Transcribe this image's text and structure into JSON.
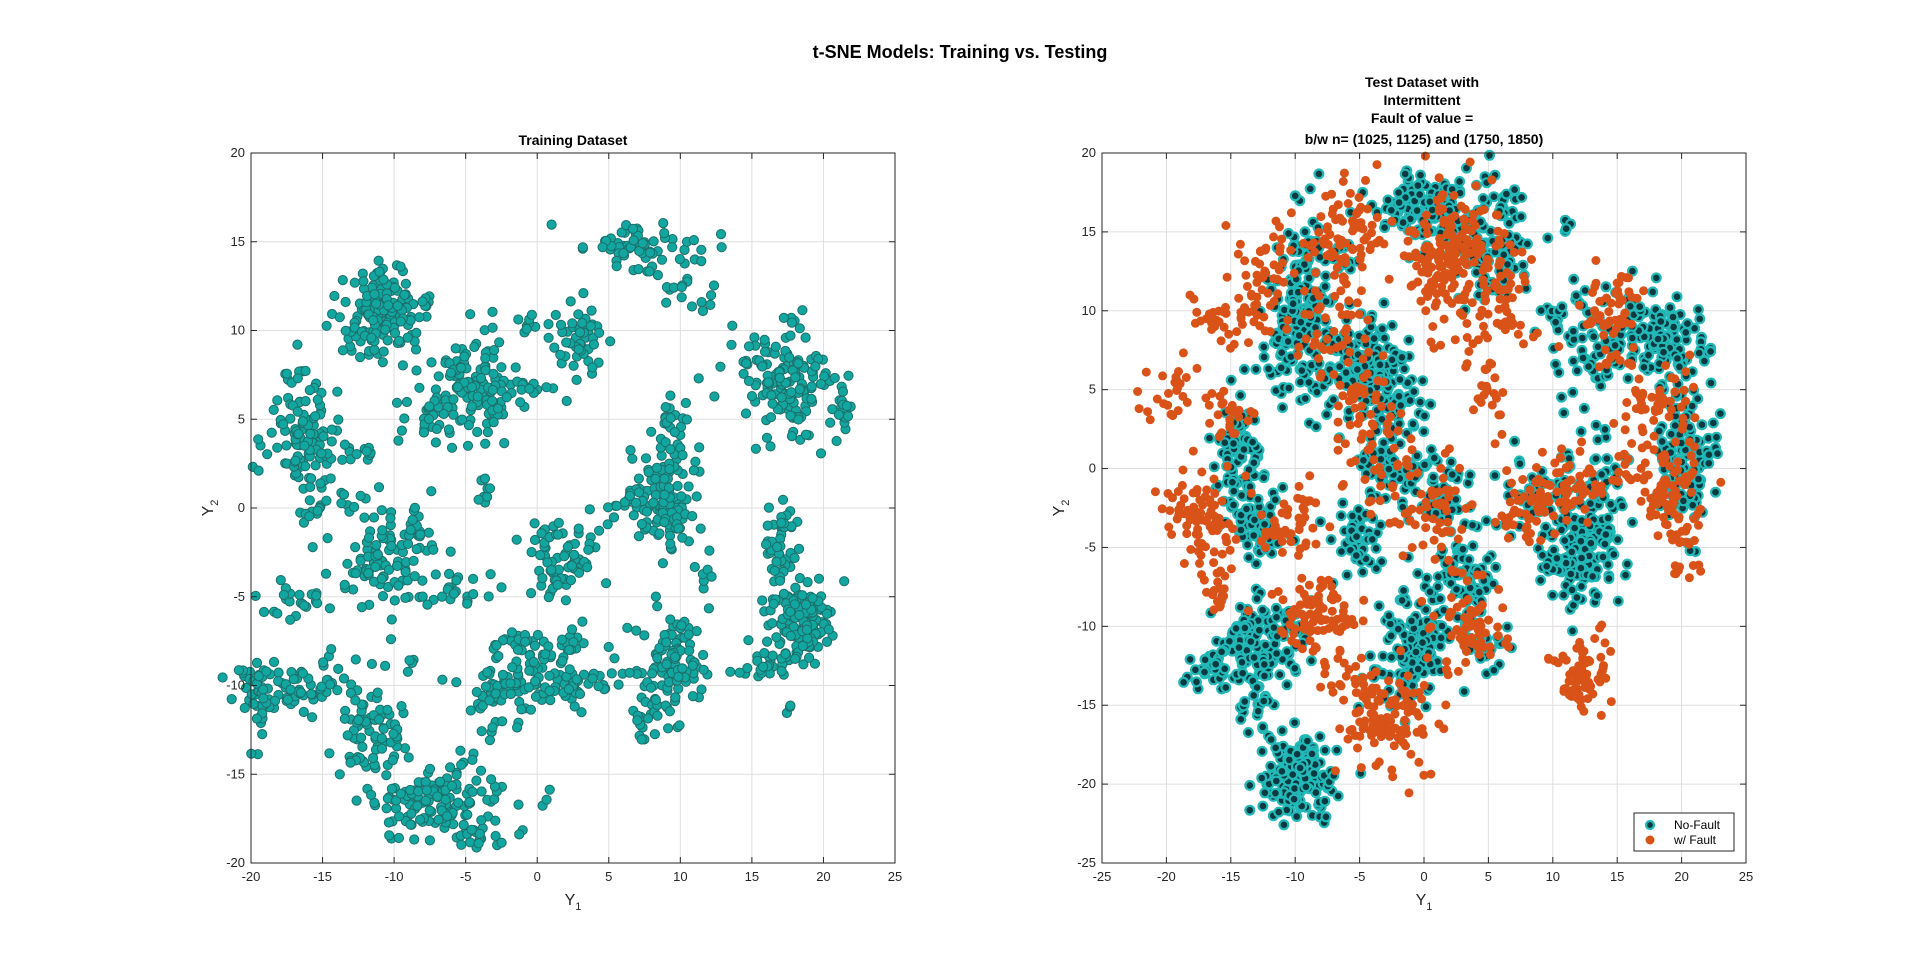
{
  "figure": {
    "title": "t-SNE Models: Training vs. Testing"
  },
  "chart_data": [
    {
      "type": "scatter",
      "title": "Training Dataset",
      "xlabel": "Y",
      "xlabel_sub": "1",
      "ylabel": "Y",
      "ylabel_sub": "2",
      "xlim": [
        -20,
        25
      ],
      "ylim": [
        -20,
        20
      ],
      "xticks": [
        -20,
        -15,
        -10,
        -5,
        0,
        5,
        10,
        15,
        20,
        25
      ],
      "yticks": [
        -20,
        -15,
        -10,
        -5,
        0,
        5,
        10,
        15,
        20
      ],
      "grid": true,
      "legend": null,
      "colors": {
        "marker_fill": "#11a7a0",
        "marker_edge": "#1e6e6a"
      },
      "series": [
        {
          "clusters": [
            {
              "x": -11,
              "y": 10.8,
              "sx": 1.6,
              "sy": 1.3,
              "n": 170
            },
            {
              "x": -16.5,
              "y": 4.3,
              "sx": 1.3,
              "sy": 1.8,
              "n": 110
            },
            {
              "x": -4.5,
              "y": 6.8,
              "sx": 1.6,
              "sy": 1.4,
              "n": 130
            },
            {
              "x": 3,
              "y": 9.3,
              "sx": 1.1,
              "sy": 1.1,
              "n": 50
            },
            {
              "x": 7.8,
              "y": 14.6,
              "sx": 2.2,
              "sy": 0.8,
              "n": 70
            },
            {
              "x": 17.2,
              "y": 7,
              "sx": 1.6,
              "sy": 1.6,
              "n": 150
            },
            {
              "x": 21.2,
              "y": 5.5,
              "sx": 0.3,
              "sy": 0.8,
              "n": 20
            },
            {
              "x": 9.2,
              "y": 0.3,
              "sx": 1.2,
              "sy": 1.6,
              "n": 120
            },
            {
              "x": 9.5,
              "y": 4.5,
              "sx": 0.8,
              "sy": 1.4,
              "n": 30
            },
            {
              "x": 18.2,
              "y": -6.3,
              "sx": 1.2,
              "sy": 1.2,
              "n": 140
            },
            {
              "x": 16.8,
              "y": -2.2,
              "sx": 0.6,
              "sy": 1.5,
              "n": 45
            },
            {
              "x": 16,
              "y": -8.6,
              "sx": 1.2,
              "sy": 0.5,
              "n": 25
            },
            {
              "x": 9.5,
              "y": -8.7,
              "sx": 1.1,
              "sy": 1.4,
              "n": 90
            },
            {
              "x": 8,
              "y": -11.5,
              "sx": 1.0,
              "sy": 0.8,
              "n": 25
            },
            {
              "x": 2,
              "y": -2.8,
              "sx": 1.6,
              "sy": 1.2,
              "n": 70
            },
            {
              "x": 0.5,
              "y": -7.8,
              "sx": 1.8,
              "sy": 0.5,
              "n": 50
            },
            {
              "x": 1.5,
              "y": -9.8,
              "sx": 2.8,
              "sy": 0.6,
              "n": 70
            },
            {
              "x": -2,
              "y": -10.5,
              "sx": 1.2,
              "sy": 1.3,
              "n": 50
            },
            {
              "x": -11,
              "y": -3.2,
              "sx": 1.4,
              "sy": 1.2,
              "n": 70
            },
            {
              "x": -9,
              "y": -1.5,
              "sx": 1.5,
              "sy": 1.0,
              "n": 35
            },
            {
              "x": -6,
              "y": -4.8,
              "sx": 1.8,
              "sy": 0.5,
              "n": 25
            },
            {
              "x": -17.5,
              "y": -10,
              "sx": 2.3,
              "sy": 0.7,
              "n": 70
            },
            {
              "x": -19.4,
              "y": -10.8,
              "sx": 0.4,
              "sy": 1.3,
              "n": 30
            },
            {
              "x": -17,
              "y": -5.2,
              "sx": 1.3,
              "sy": 0.6,
              "n": 25
            },
            {
              "x": -11.5,
              "y": -12.5,
              "sx": 1.3,
              "sy": 1.5,
              "n": 80
            },
            {
              "x": -7,
              "y": -16.5,
              "sx": 2.2,
              "sy": 1.1,
              "n": 140
            },
            {
              "x": -4.5,
              "y": -18.5,
              "sx": 1.0,
              "sy": 0.5,
              "n": 15
            },
            {
              "x": -13,
              "y": 0.3,
              "sx": 0.9,
              "sy": 0.6,
              "n": 10
            },
            {
              "x": -15.5,
              "y": -0.5,
              "sx": 0.5,
              "sy": 0.8,
              "n": 15
            },
            {
              "x": -3.5,
              "y": 1.0,
              "sx": 0.3,
              "sy": 0.5,
              "n": 8
            },
            {
              "x": 6.5,
              "y": 0.2,
              "sx": 1.0,
              "sy": 0.4,
              "n": 12
            },
            {
              "x": 11.8,
              "y": -4,
              "sx": 0.3,
              "sy": 0.5,
              "n": 6
            },
            {
              "x": -0.5,
              "y": 10.5,
              "sx": 0.6,
              "sy": 0.4,
              "n": 8
            },
            {
              "x": -8.5,
              "y": 5.2,
              "sx": 1.2,
              "sy": 0.8,
              "n": 20
            },
            {
              "x": -12.5,
              "y": 3,
              "sx": 0.8,
              "sy": 0.3,
              "n": 10
            },
            {
              "x": 0,
              "y": 6.8,
              "sx": 1.0,
              "sy": 0.4,
              "n": 10
            },
            {
              "x": 0.6,
              "y": -16.3,
              "sx": 0.5,
              "sy": 0.4,
              "n": 3
            },
            {
              "x": 17.6,
              "y": -11.4,
              "sx": 0.1,
              "sy": 0.2,
              "n": 3
            },
            {
              "x": -9,
              "y": -8.8,
              "sx": 0.2,
              "sy": 0.4,
              "n": 4
            },
            {
              "x": 11,
              "y": 12,
              "sx": 1.0,
              "sy": 0.6,
              "n": 15
            }
          ]
        }
      ]
    },
    {
      "type": "scatter",
      "title_lines": [
        "Test Dataset with",
        "Intermittent",
        "Fault of value =",
        "b/w n= (1025, 1125) and (1750, 1850)"
      ],
      "xlabel": "Y",
      "xlabel_sub": "1",
      "ylabel": "Y",
      "ylabel_sub": "2",
      "xlim": [
        -25,
        25
      ],
      "ylim": [
        -25,
        20
      ],
      "xticks": [
        -25,
        -20,
        -15,
        -10,
        -5,
        0,
        5,
        10,
        15,
        20,
        25
      ],
      "yticks": [
        -25,
        -20,
        -15,
        -10,
        -5,
        0,
        5,
        10,
        15,
        20
      ],
      "grid": true,
      "legend": "bottom-right",
      "series": [
        {
          "name": "No-Fault",
          "colors": {
            "marker_fill": "#0a3a40",
            "marker_edge": "#22b8b8"
          },
          "clusters": [
            {
              "x": -9.8,
              "y": -19.5,
              "sx": 1.4,
              "sy": 1.4,
              "n": 160
            },
            {
              "x": -12.5,
              "y": -11,
              "sx": 1.8,
              "sy": 1.4,
              "n": 150
            },
            {
              "x": -1,
              "y": -11.5,
              "sx": 1.4,
              "sy": 1.6,
              "n": 140
            },
            {
              "x": 3,
              "y": -7,
              "sx": 1.3,
              "sy": 1.8,
              "n": 90
            },
            {
              "x": 12,
              "y": -5.3,
              "sx": 1.5,
              "sy": 1.6,
              "n": 130
            },
            {
              "x": 20.3,
              "y": 1,
              "sx": 1.0,
              "sy": 2.2,
              "n": 110
            },
            {
              "x": 19,
              "y": 8,
              "sx": 1.6,
              "sy": 1.6,
              "n": 110
            },
            {
              "x": 13,
              "y": 8.5,
              "sx": 2.2,
              "sy": 1.8,
              "n": 90
            },
            {
              "x": 5.5,
              "y": 14,
              "sx": 1.5,
              "sy": 2.0,
              "n": 100
            },
            {
              "x": 0,
              "y": 16.5,
              "sx": 2.2,
              "sy": 1.3,
              "n": 130
            },
            {
              "x": -9.5,
              "y": 10,
              "sx": 1.4,
              "sy": 3.0,
              "n": 180
            },
            {
              "x": -4.5,
              "y": 6.5,
              "sx": 1.2,
              "sy": 1.6,
              "n": 110
            },
            {
              "x": -2,
              "y": 4.5,
              "sx": 1.2,
              "sy": 1.3,
              "n": 60
            },
            {
              "x": -14.5,
              "y": 0.8,
              "sx": 0.9,
              "sy": 1.8,
              "n": 90
            },
            {
              "x": -13,
              "y": -3.5,
              "sx": 1.1,
              "sy": 1.5,
              "n": 60
            },
            {
              "x": -5,
              "y": -4.5,
              "sx": 1.0,
              "sy": 1.3,
              "n": 50
            },
            {
              "x": -2.5,
              "y": 0,
              "sx": 1.8,
              "sy": 1.4,
              "n": 70
            },
            {
              "x": 1.5,
              "y": -2,
              "sx": 1.0,
              "sy": 1.3,
              "n": 35
            },
            {
              "x": 9.5,
              "y": -1.5,
              "sx": 1.5,
              "sy": 1.2,
              "n": 55
            },
            {
              "x": 14,
              "y": -1.5,
              "sx": 1.1,
              "sy": 1.8,
              "n": 45
            },
            {
              "x": -17,
              "y": -12.5,
              "sx": 1.1,
              "sy": 0.5,
              "n": 25
            },
            {
              "x": -13.5,
              "y": -15.5,
              "sx": 0.9,
              "sy": 0.9,
              "n": 20
            },
            {
              "x": 5,
              "y": -11,
              "sx": 0.8,
              "sy": 1.0,
              "n": 25
            },
            {
              "x": -6.5,
              "y": 13.5,
              "sx": 1.0,
              "sy": 0.5,
              "n": 15
            },
            {
              "x": 11,
              "y": 15.5,
              "sx": 0.3,
              "sy": 0.3,
              "n": 4
            },
            {
              "x": 22,
              "y": 1,
              "sx": 0.4,
              "sy": 0.4,
              "n": 6
            }
          ]
        },
        {
          "name": "w/ Fault",
          "colors": {
            "marker_fill": "#d95319",
            "marker_edge": "#d95319"
          },
          "clusters": [
            {
              "x": -6.5,
              "y": 15,
              "sx": 1.6,
              "sy": 1.8,
              "n": 90
            },
            {
              "x": 1.5,
              "y": 13.5,
              "sx": 1.8,
              "sy": 2.2,
              "n": 160
            },
            {
              "x": 6,
              "y": 10.5,
              "sx": 1.2,
              "sy": 2.0,
              "n": 70
            },
            {
              "x": 14.5,
              "y": 9.5,
              "sx": 1.3,
              "sy": 1.5,
              "n": 60
            },
            {
              "x": -12.5,
              "y": 12,
              "sx": 1.4,
              "sy": 1.8,
              "n": 50
            },
            {
              "x": -15,
              "y": 9.5,
              "sx": 1.5,
              "sy": 1.2,
              "n": 35
            },
            {
              "x": -7,
              "y": 8.5,
              "sx": 1.8,
              "sy": 1.2,
              "n": 40
            },
            {
              "x": -5,
              "y": 3.5,
              "sx": 1.2,
              "sy": 1.6,
              "n": 40
            },
            {
              "x": -17.5,
              "y": -3,
              "sx": 1.4,
              "sy": 1.8,
              "n": 80
            },
            {
              "x": -15,
              "y": 3.5,
              "sx": 1.3,
              "sy": 1.0,
              "n": 25
            },
            {
              "x": -19.5,
              "y": 4.5,
              "sx": 1.0,
              "sy": 1.0,
              "n": 25
            },
            {
              "x": -16,
              "y": -8,
              "sx": 0.6,
              "sy": 0.8,
              "n": 15
            },
            {
              "x": -8,
              "y": -9.5,
              "sx": 2.0,
              "sy": 1.4,
              "n": 90
            },
            {
              "x": -2.5,
              "y": -16,
              "sx": 1.8,
              "sy": 1.5,
              "n": 100
            },
            {
              "x": 3.5,
              "y": -10,
              "sx": 1.5,
              "sy": 1.5,
              "n": 70
            },
            {
              "x": 12.5,
              "y": -13.5,
              "sx": 1.0,
              "sy": 1.4,
              "n": 70
            },
            {
              "x": 8,
              "y": -3,
              "sx": 1.3,
              "sy": 1.2,
              "n": 45
            },
            {
              "x": 11,
              "y": -1,
              "sx": 2.0,
              "sy": 1.3,
              "n": 60
            },
            {
              "x": 18.5,
              "y": -1,
              "sx": 1.5,
              "sy": 1.5,
              "n": 80
            },
            {
              "x": 18,
              "y": 4,
              "sx": 1.5,
              "sy": 1.4,
              "n": 55
            },
            {
              "x": 1,
              "y": -3,
              "sx": 1.6,
              "sy": 1.8,
              "n": 55
            },
            {
              "x": -10,
              "y": -3.5,
              "sx": 1.6,
              "sy": 1.4,
              "n": 45
            },
            {
              "x": -3,
              "y": 0,
              "sx": 1.4,
              "sy": 1.8,
              "n": 35
            },
            {
              "x": 5,
              "y": 4.5,
              "sx": 0.8,
              "sy": 1.0,
              "n": 20
            },
            {
              "x": 20,
              "y": -5,
              "sx": 1.0,
              "sy": 1.0,
              "n": 20
            },
            {
              "x": -5.5,
              "y": -13.5,
              "sx": 1.5,
              "sy": 1.0,
              "n": 25
            }
          ]
        }
      ]
    }
  ]
}
